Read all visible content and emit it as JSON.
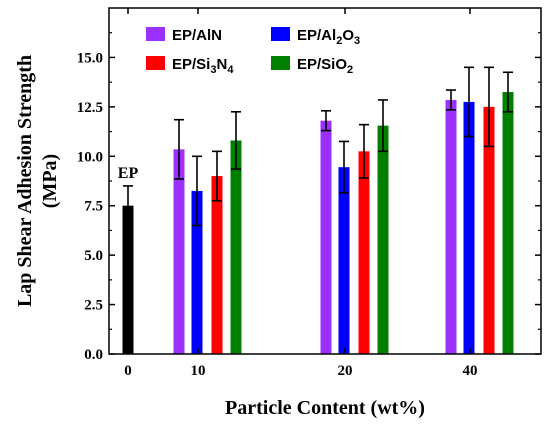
{
  "chart_data": {
    "type": "bar",
    "xlabel": "Particle Content (wt%)",
    "ylabel_line1": "Lap Shear Adhesion Strength",
    "ylabel_line2": "(MPa)",
    "ylim": [
      0,
      17.5
    ],
    "yticks": [
      "0.0",
      "2.5",
      "5.0",
      "7.5",
      "10.0",
      "12.5",
      "15.0"
    ],
    "categories": [
      "0",
      "10",
      "20",
      "40"
    ],
    "series": [
      {
        "name": "EP",
        "color": "#000000",
        "values": [
          7.5,
          null,
          null,
          null
        ],
        "errors": [
          1.0,
          null,
          null,
          null
        ]
      },
      {
        "name": "EP/AlN",
        "color": "#9B30FF",
        "values": [
          null,
          10.35,
          11.8,
          12.85
        ],
        "errors": [
          null,
          1.5,
          0.5,
          0.5
        ]
      },
      {
        "name": "EP/Al2O3",
        "name_parts": [
          "EP/Al",
          "2",
          "O",
          "3"
        ],
        "color": "#0000FF",
        "values": [
          null,
          8.25,
          9.45,
          12.75
        ],
        "errors": [
          null,
          1.75,
          1.3,
          1.75
        ]
      },
      {
        "name": "EP/Si3N4",
        "name_parts": [
          "EP/Si",
          "3",
          "N",
          "4"
        ],
        "color": "#FF0000",
        "values": [
          null,
          9.0,
          10.25,
          12.5
        ],
        "errors": [
          null,
          1.25,
          1.35,
          2.0
        ]
      },
      {
        "name": "EP/SiO2",
        "name_parts": [
          "EP/SiO",
          "2"
        ],
        "color": "#008000",
        "values": [
          null,
          10.8,
          11.55,
          13.25
        ],
        "errors": [
          null,
          1.45,
          1.3,
          1.0
        ]
      }
    ],
    "annotations": [
      {
        "text": "EP"
      }
    ],
    "legend": "top-left",
    "grid": false
  }
}
